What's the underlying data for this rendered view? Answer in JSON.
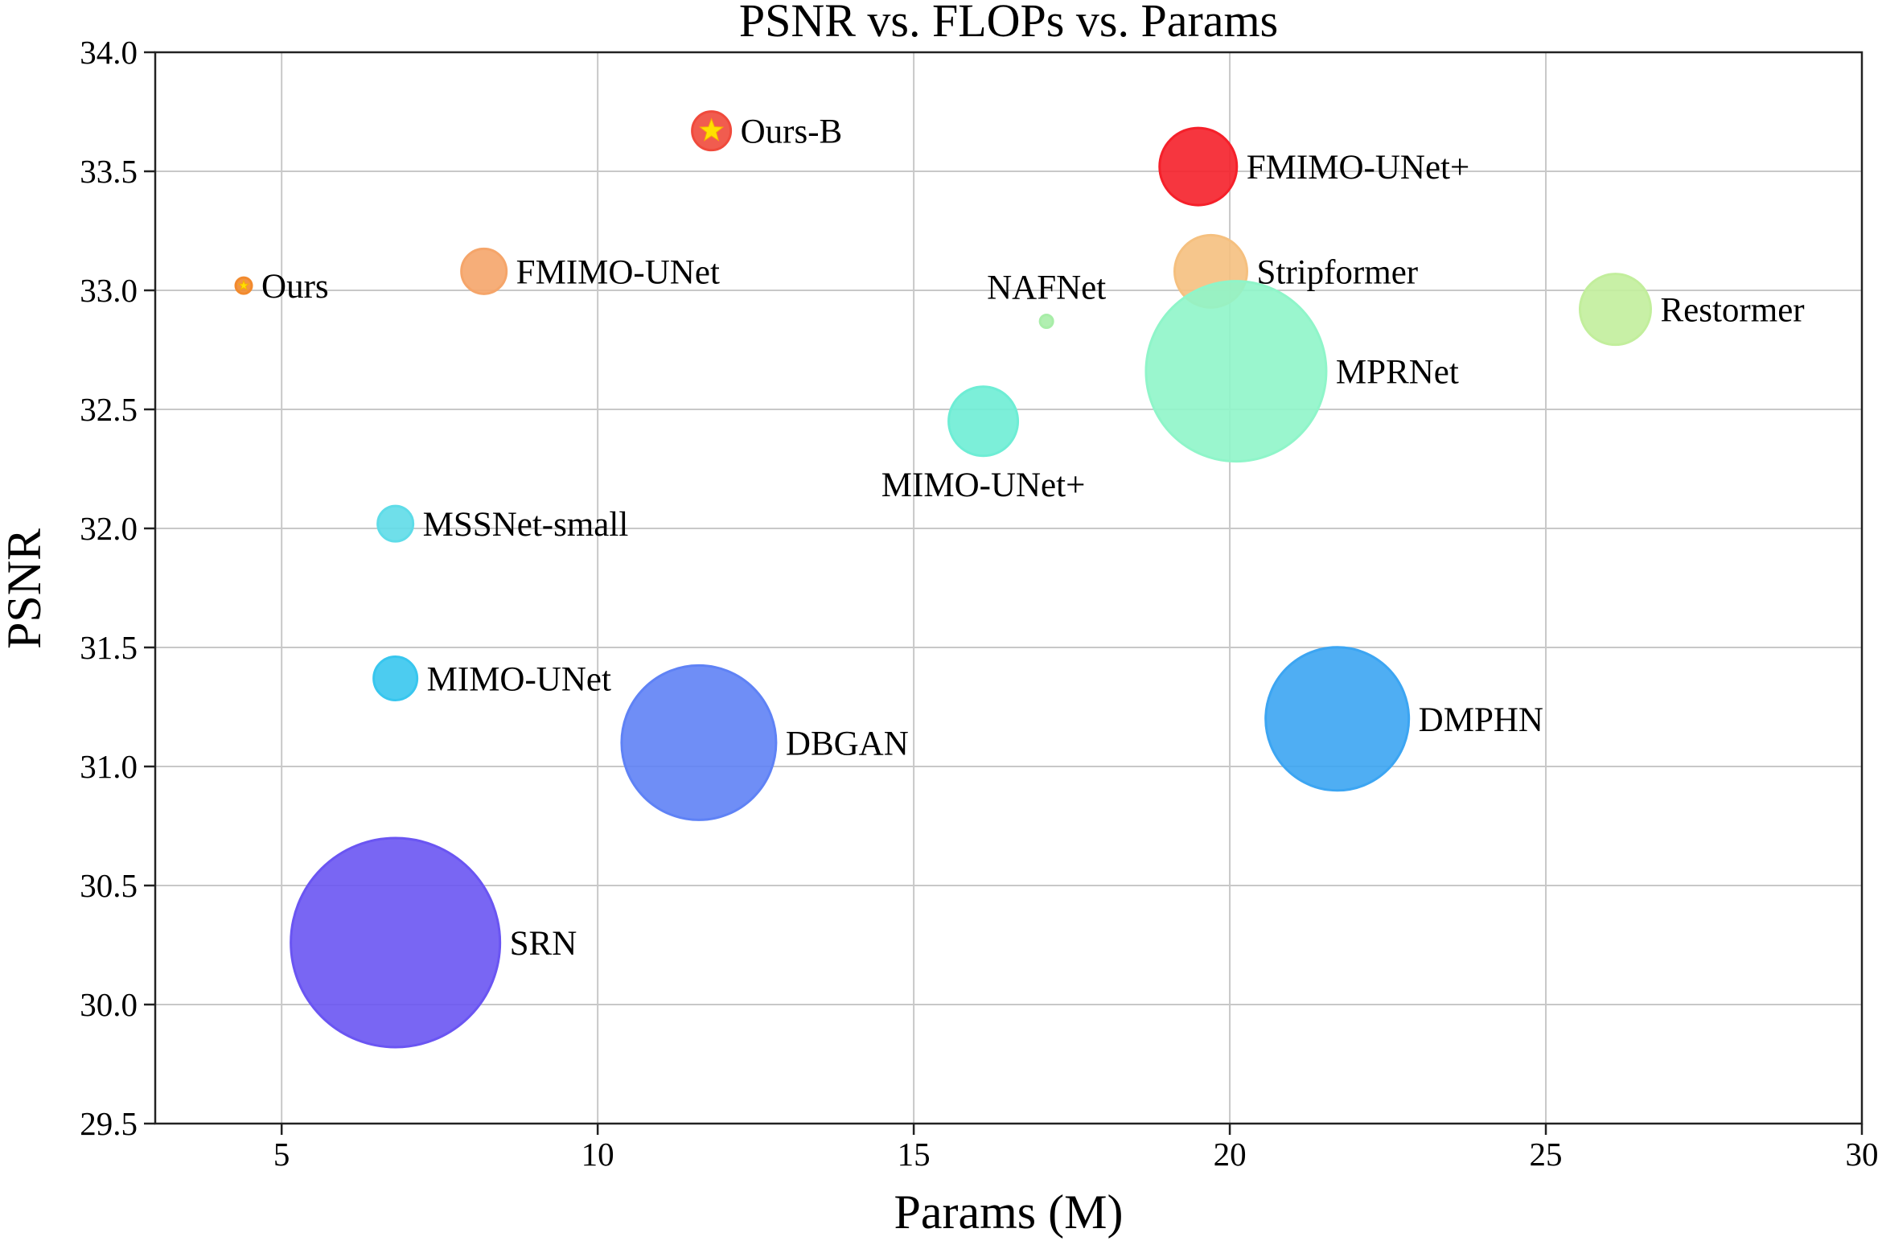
{
  "chart_data": {
    "type": "scatter",
    "title": "PSNR vs. FLOPs vs. Params",
    "xlabel": "Params (M)",
    "ylabel": "PSNR",
    "xlim": [
      3,
      30
    ],
    "ylim": [
      29.5,
      34.0
    ],
    "xticks": [
      5,
      10,
      15,
      20,
      25,
      30
    ],
    "yticks": [
      29.5,
      30.0,
      30.5,
      31.0,
      31.5,
      32.0,
      32.5,
      33.0,
      33.5,
      34.0
    ],
    "grid": true,
    "bubble_size_encodes": "FLOPs",
    "points": [
      {
        "label": "Ours",
        "x": 4.4,
        "y": 33.02,
        "size": 10,
        "color": "#f28a2e",
        "star": true,
        "label_pos": "right"
      },
      {
        "label": "Ours-B",
        "x": 11.8,
        "y": 33.67,
        "size": 24,
        "color": "#f04a3c",
        "star": true,
        "label_pos": "right"
      },
      {
        "label": "FMIMO-UNet",
        "x": 8.2,
        "y": 33.08,
        "size": 28,
        "color": "#f5a56a",
        "label_pos": "right"
      },
      {
        "label": "FMIMO-UNet+",
        "x": 19.5,
        "y": 33.52,
        "size": 48,
        "color": "#f5202a",
        "label_pos": "right"
      },
      {
        "label": "Stripformer",
        "x": 19.7,
        "y": 33.08,
        "size": 45,
        "color": "#f5c07f",
        "label_pos": "right"
      },
      {
        "label": "NAFNet",
        "x": 17.1,
        "y": 32.87,
        "size": 8,
        "color": "#a8eda8",
        "label_pos": "top"
      },
      {
        "label": "Restormer",
        "x": 26.1,
        "y": 32.92,
        "size": 44,
        "color": "#c2ee9c",
        "label_pos": "right"
      },
      {
        "label": "MPRNet",
        "x": 20.1,
        "y": 32.66,
        "size": 112,
        "color": "#8ff5c9",
        "label_pos": "right"
      },
      {
        "label": "MIMO-UNet+",
        "x": 16.1,
        "y": 32.45,
        "size": 43,
        "color": "#6eedd5",
        "label_pos": "bottom"
      },
      {
        "label": "MSSNet-small",
        "x": 6.8,
        "y": 32.02,
        "size": 22,
        "color": "#5fdce8",
        "label_pos": "right"
      },
      {
        "label": "MIMO-UNet",
        "x": 6.8,
        "y": 31.37,
        "size": 27,
        "color": "#38c6ee",
        "label_pos": "right"
      },
      {
        "label": "DBGAN",
        "x": 11.6,
        "y": 31.1,
        "size": 96,
        "color": "#5f82f5",
        "label_pos": "right"
      },
      {
        "label": "DMPHN",
        "x": 21.7,
        "y": 31.2,
        "size": 89,
        "color": "#3ca5f2",
        "label_pos": "right"
      },
      {
        "label": "SRN",
        "x": 6.8,
        "y": 30.26,
        "size": 130,
        "color": "#6a55f2",
        "label_pos": "right"
      }
    ]
  }
}
